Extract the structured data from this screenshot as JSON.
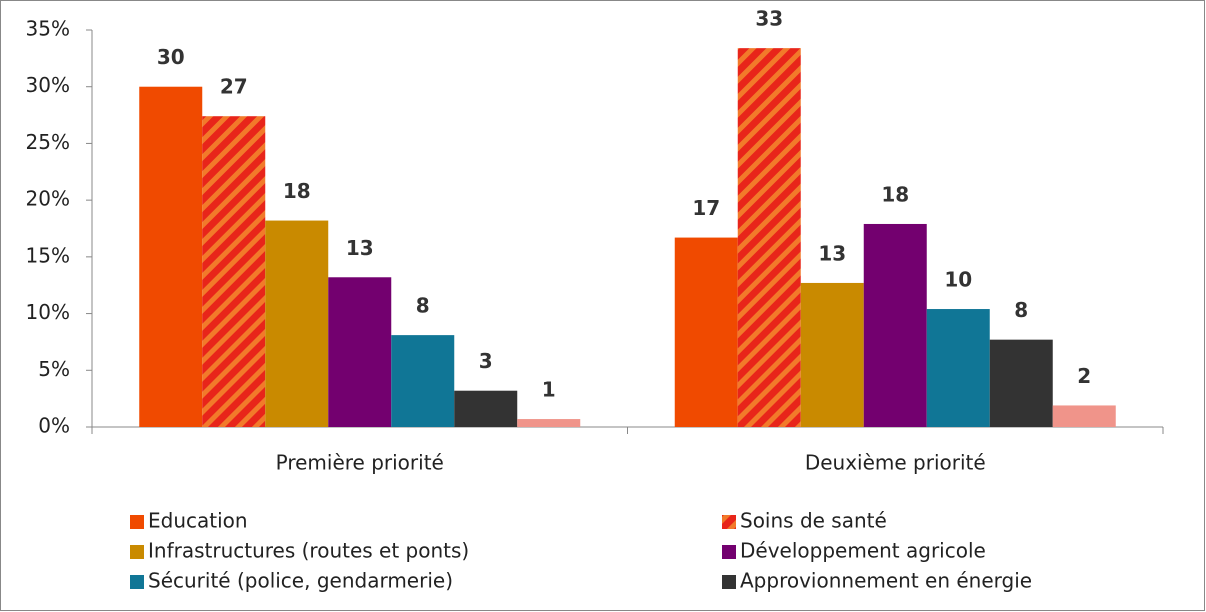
{
  "chart_data": {
    "type": "bar",
    "categories": [
      "Première priorité",
      "Deuxième priorité"
    ],
    "series": [
      {
        "name": "Education",
        "color": "#f04a00",
        "values": [
          30.0,
          16.7
        ],
        "value_labels": [
          "30",
          "17"
        ]
      },
      {
        "name": "Soins de santé",
        "color": "#e8251a",
        "pattern": "hatch",
        "values": [
          27.4,
          33.4
        ],
        "value_labels": [
          "27",
          "33"
        ]
      },
      {
        "name": "Infrastructures (routes et ponts)",
        "color": "#c98a00",
        "values": [
          18.2,
          12.7
        ],
        "value_labels": [
          "18",
          "13"
        ]
      },
      {
        "name": "Développement agricole",
        "color": "#73006f",
        "values": [
          13.2,
          17.9
        ],
        "value_labels": [
          "13",
          "18"
        ]
      },
      {
        "name": "Sécurité (police, gendarmerie)",
        "color": "#107696",
        "values": [
          8.1,
          10.4
        ],
        "value_labels": [
          "8",
          "10"
        ]
      },
      {
        "name": "Approvionnement en énergie",
        "color": "#333333",
        "values": [
          3.2,
          7.7
        ],
        "value_labels": [
          "3",
          "8"
        ]
      },
      {
        "color": "#f0948a",
        "values": [
          0.7,
          1.9
        ],
        "value_labels": [
          "1",
          "2"
        ]
      }
    ],
    "ylim": [
      0,
      35
    ],
    "yticks": [
      {
        "value": 0,
        "label": "0%"
      },
      {
        "value": 5,
        "label": "5%"
      },
      {
        "value": 10,
        "label": "10%"
      },
      {
        "value": 15,
        "label": "15%"
      },
      {
        "value": 20,
        "label": "20%"
      },
      {
        "value": 25,
        "label": "25%"
      },
      {
        "value": 30,
        "label": "30%"
      },
      {
        "value": 35,
        "label": "35%"
      }
    ],
    "grid": false,
    "legend": "bottom"
  }
}
